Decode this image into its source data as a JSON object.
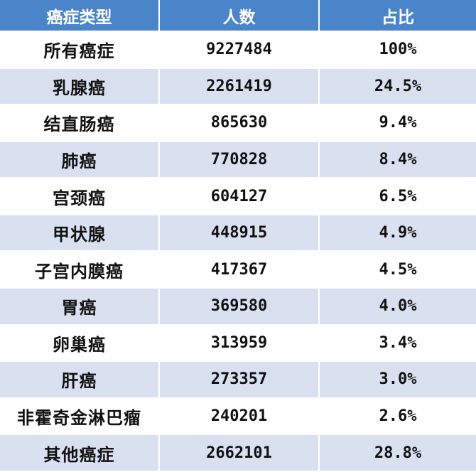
{
  "table": {
    "headers": [
      "癌症类型",
      "人数",
      "占比"
    ],
    "rows": [
      {
        "type": "所有癌症",
        "count": "9227484",
        "percent": "100%"
      },
      {
        "type": "乳腺癌",
        "count": "2261419",
        "percent": "24.5%"
      },
      {
        "type": "结直肠癌",
        "count": "865630",
        "percent": "9.4%"
      },
      {
        "type": "肺癌",
        "count": "770828",
        "percent": "8.4%"
      },
      {
        "type": "宫颈癌",
        "count": "604127",
        "percent": "6.5%"
      },
      {
        "type": "甲状腺",
        "count": "448915",
        "percent": "4.9%"
      },
      {
        "type": "子宫内膜癌",
        "count": "417367",
        "percent": "4.5%"
      },
      {
        "type": "胃癌",
        "count": "369580",
        "percent": "4.0%"
      },
      {
        "type": "卵巢癌",
        "count": "313959",
        "percent": "3.4%"
      },
      {
        "type": "肝癌",
        "count": "273357",
        "percent": "3.0%"
      },
      {
        "type": "非霍奇金淋巴瘤",
        "count": "240201",
        "percent": "2.6%"
      },
      {
        "type": "其他癌症",
        "count": "2662101",
        "percent": "28.8%"
      }
    ]
  },
  "colors": {
    "header_bg": "#4a84c9",
    "stripe_bg": "#d9e1f1",
    "plain_bg": "#ffffff"
  }
}
